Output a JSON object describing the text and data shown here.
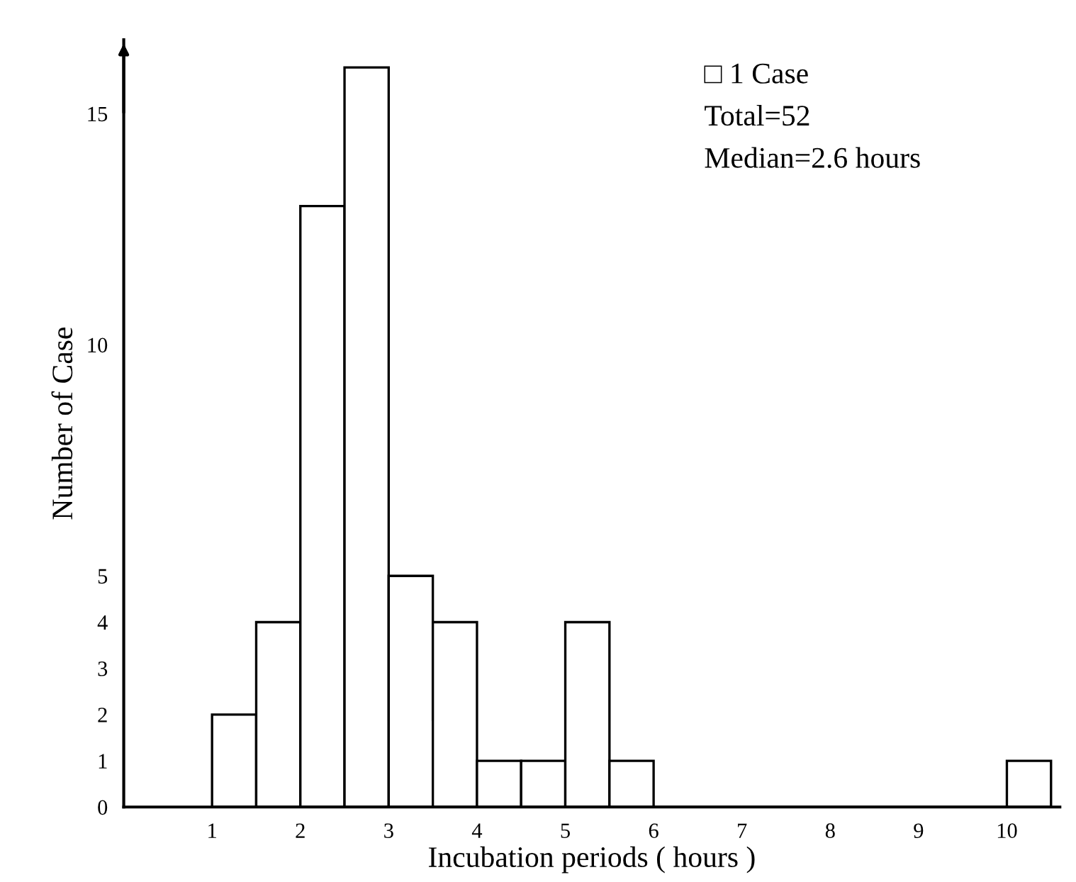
{
  "chart_data": {
    "type": "histogram",
    "xlabel": "Incubation periods ( hours )",
    "ylabel": "Number of Case",
    "bins": [
      1,
      1.5,
      2,
      2.5,
      3,
      3.5,
      4,
      4.5,
      5,
      5.5,
      6,
      6.5,
      7,
      7.5,
      8,
      8.5,
      9,
      9.5,
      10,
      10.5
    ],
    "values": [
      2,
      4,
      13,
      16,
      5,
      4,
      1,
      1,
      4,
      1,
      0,
      0,
      0,
      0,
      0,
      0,
      0,
      0,
      1
    ],
    "color": "#ffffff",
    "xlim": [
      0,
      10.6
    ],
    "xticks": [
      1,
      2,
      3,
      4,
      5,
      6,
      7,
      8,
      9,
      10
    ],
    "ylim": [
      0,
      16.6
    ],
    "yticks": [
      0,
      1,
      2,
      3,
      4,
      5,
      10,
      15
    ],
    "grid": false,
    "annotations": [
      "□ 1 Case",
      "Total=52",
      "Median=2.6 hours"
    ]
  }
}
